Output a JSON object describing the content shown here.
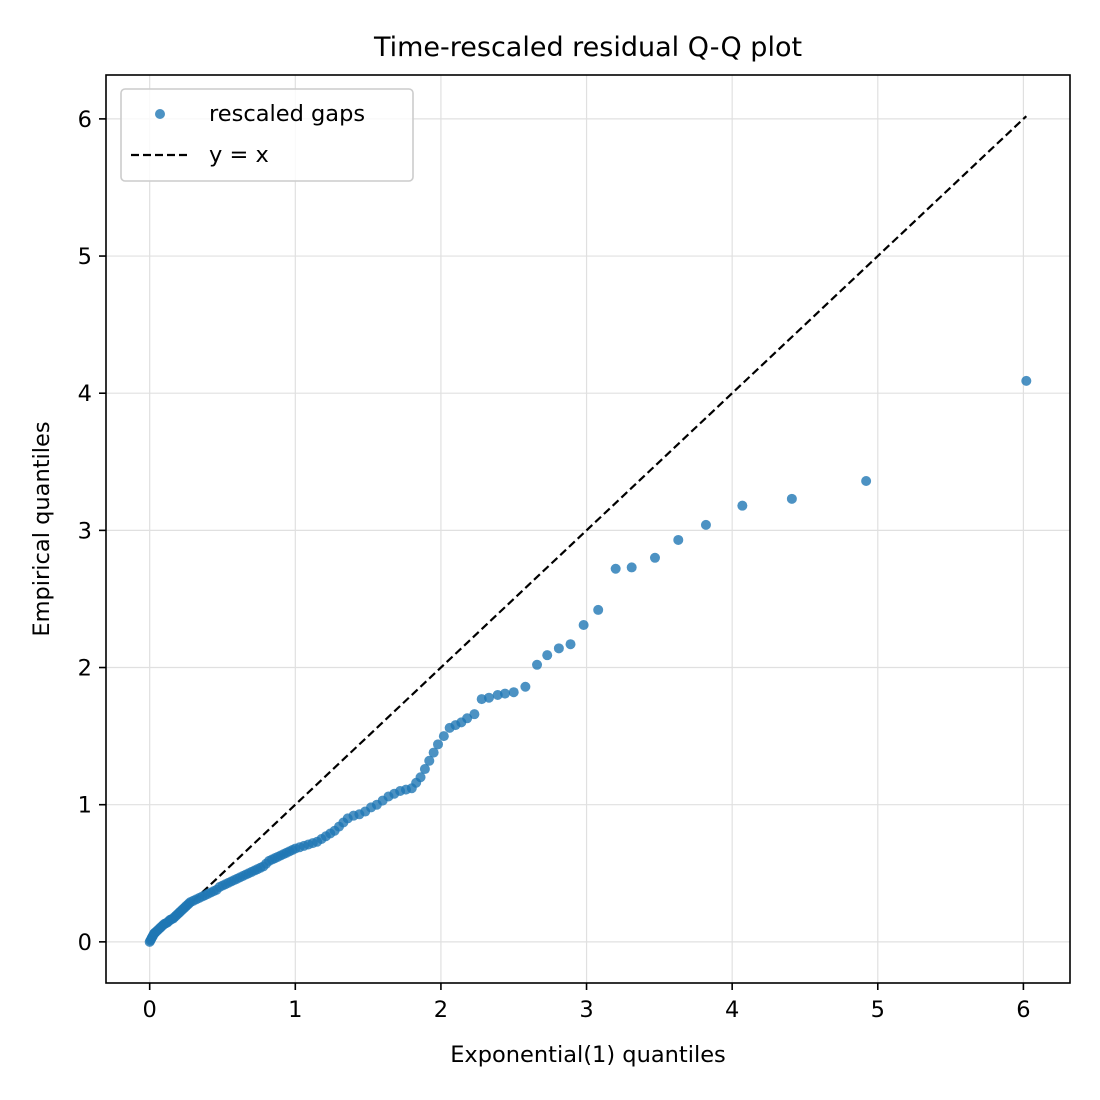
{
  "chart_data": {
    "type": "scatter",
    "title": "Time-rescaled residual Q-Q plot",
    "xlabel": "Exponential(1) quantiles",
    "ylabel": "Empirical quantiles",
    "xlim": [
      -0.3,
      6.32
    ],
    "ylim": [
      -0.3,
      6.32
    ],
    "xticks": [
      0,
      1,
      2,
      3,
      4,
      5,
      6
    ],
    "yticks": [
      0,
      1,
      2,
      3,
      4,
      5,
      6
    ],
    "grid": true,
    "legend_position": "upper-left",
    "series": [
      {
        "name": "rescaled gaps",
        "kind": "scatter",
        "color": "#1f77b4",
        "x": [
          0.0,
          0.005,
          0.01,
          0.015,
          0.02,
          0.025,
          0.03,
          0.035,
          0.04,
          0.05,
          0.06,
          0.07,
          0.08,
          0.09,
          0.1,
          0.11,
          0.12,
          0.13,
          0.14,
          0.15,
          0.16,
          0.17,
          0.18,
          0.19,
          0.2,
          0.21,
          0.22,
          0.23,
          0.24,
          0.25,
          0.26,
          0.27,
          0.28,
          0.3,
          0.32,
          0.34,
          0.36,
          0.38,
          0.4,
          0.42,
          0.44,
          0.46,
          0.48,
          0.5,
          0.52,
          0.54,
          0.56,
          0.58,
          0.6,
          0.62,
          0.64,
          0.66,
          0.68,
          0.7,
          0.72,
          0.74,
          0.76,
          0.78,
          0.8,
          0.82,
          0.84,
          0.86,
          0.88,
          0.9,
          0.92,
          0.94,
          0.96,
          0.98,
          1.0,
          1.03,
          1.06,
          1.09,
          1.12,
          1.15,
          1.18,
          1.21,
          1.24,
          1.27,
          1.3,
          1.33,
          1.36,
          1.4,
          1.44,
          1.48,
          1.52,
          1.56,
          1.6,
          1.64,
          1.68,
          1.72,
          1.76,
          1.8,
          1.83,
          1.86,
          1.89,
          1.92,
          1.95,
          1.98,
          2.02,
          2.06,
          2.1,
          2.14,
          2.18,
          2.23,
          2.28,
          2.33,
          2.39,
          2.44,
          2.5,
          2.58,
          2.66,
          2.73,
          2.81,
          2.89,
          2.98,
          3.08,
          3.2,
          3.31,
          3.47,
          3.63,
          3.82,
          4.07,
          4.41,
          4.92,
          6.02
        ],
        "y": [
          0.0,
          0.01,
          0.02,
          0.03,
          0.04,
          0.05,
          0.06,
          0.065,
          0.07,
          0.08,
          0.09,
          0.1,
          0.11,
          0.12,
          0.13,
          0.135,
          0.14,
          0.15,
          0.16,
          0.165,
          0.17,
          0.18,
          0.19,
          0.2,
          0.21,
          0.22,
          0.23,
          0.24,
          0.25,
          0.26,
          0.27,
          0.28,
          0.29,
          0.3,
          0.31,
          0.32,
          0.33,
          0.34,
          0.35,
          0.36,
          0.37,
          0.38,
          0.4,
          0.41,
          0.42,
          0.43,
          0.44,
          0.45,
          0.46,
          0.47,
          0.48,
          0.49,
          0.5,
          0.51,
          0.52,
          0.53,
          0.54,
          0.55,
          0.57,
          0.59,
          0.6,
          0.61,
          0.62,
          0.63,
          0.64,
          0.65,
          0.66,
          0.67,
          0.68,
          0.69,
          0.7,
          0.71,
          0.72,
          0.73,
          0.75,
          0.77,
          0.79,
          0.81,
          0.84,
          0.87,
          0.9,
          0.92,
          0.93,
          0.95,
          0.98,
          1.0,
          1.03,
          1.06,
          1.08,
          1.1,
          1.11,
          1.12,
          1.16,
          1.2,
          1.26,
          1.32,
          1.38,
          1.44,
          1.5,
          1.56,
          1.58,
          1.6,
          1.63,
          1.66,
          1.77,
          1.78,
          1.8,
          1.81,
          1.82,
          1.86,
          2.02,
          2.09,
          2.14,
          2.17,
          2.31,
          2.42,
          2.72,
          2.73,
          2.8,
          2.93,
          3.04,
          3.18,
          3.23,
          3.36,
          4.09
        ]
      },
      {
        "name": "y = x",
        "kind": "line",
        "color": "#000000",
        "x": [
          0,
          6.02
        ],
        "y": [
          0,
          6.02
        ]
      }
    ]
  }
}
